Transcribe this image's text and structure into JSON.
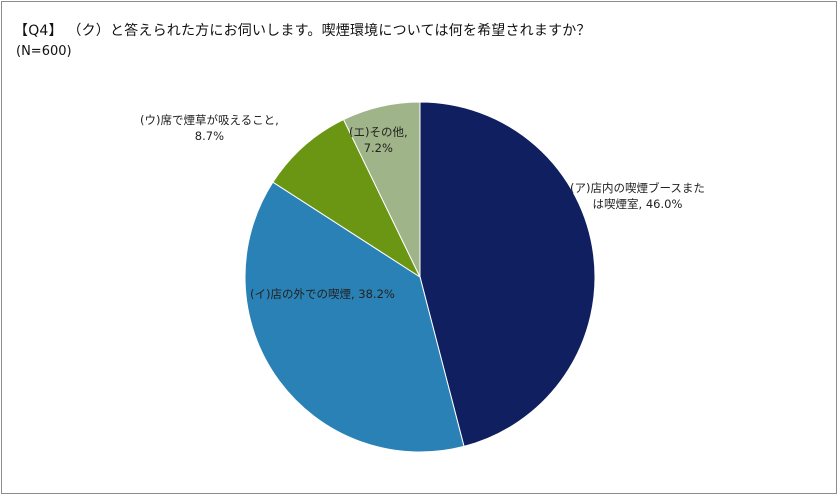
{
  "title": "【Q4】 （ク）と答えられた方にお伺いします。喫煙環境については何を希望されますか？",
  "subtitle": "(N=600)",
  "chart_data": {
    "type": "pie",
    "title": "【Q4】 （ク）と答えられた方にお伺いします。喫煙環境については何を希望されますか？",
    "subtitle": "(N=600)",
    "start_angle_deg": 0,
    "direction": "clockwise",
    "slices": [
      {
        "name": "(ア)店内の喫煙ブースまたは喫煙室",
        "label_line1": "(ア)店内の喫煙ブースまた",
        "label_line2": "は喫煙室, 46.0%",
        "value": 46.0,
        "color": "#0f1f5f"
      },
      {
        "name": "(イ)店の外での喫煙",
        "label_line1": "(イ)店の外での喫煙, 38.2%",
        "label_line2": "",
        "value": 38.2,
        "color": "#2a81b5"
      },
      {
        "name": "(ウ)席で煙草が吸えること",
        "label_line1": "(ウ)席で煙草が吸えること,",
        "label_line2": "8.7%",
        "value": 8.7,
        "color": "#6a9613"
      },
      {
        "name": "(エ)その他",
        "label_line1": "(エ)その他,",
        "label_line2": "7.2%",
        "value": 7.2,
        "color": "#9fb488"
      }
    ]
  }
}
